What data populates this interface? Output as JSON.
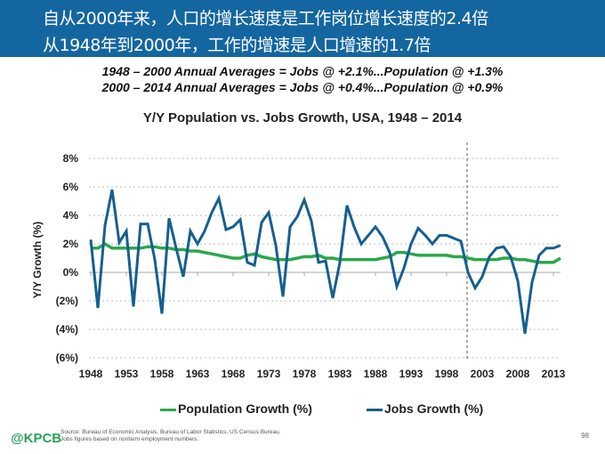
{
  "header": {
    "line1": "自从2000年来，人口的增长速度是工作岗位增长速度的2.4倍",
    "line2": "从1948年到2000年，工作的增速是人口增速的1.7倍"
  },
  "subtitle": {
    "line1": "1948 – 2000 Annual Averages = Jobs @ +2.1%...Population @ +1.3%",
    "line2": "2000 – 2014 Annual Averages = Jobs @ +0.4%...Population @ +0.9%"
  },
  "footer": {
    "logo": "@KPCB",
    "source1": "Source: Bureau of Economic Analysis, Bureau of Labor Statistics, US Census Bureau.",
    "source2": "Jobs figures based on nonfarm employment numbers.",
    "page": "98"
  },
  "chart_data": {
    "type": "line",
    "title": "Y/Y Population vs. Jobs Growth, USA, 1948 – 2014",
    "xlabel": "",
    "ylabel": "Y/Y Growth (%)",
    "ylim": [
      -6,
      8
    ],
    "yticks": [
      "8%",
      "6%",
      "4%",
      "2%",
      "0%",
      "(2%)",
      "(4%)",
      "(6%)"
    ],
    "ytick_values": [
      8,
      6,
      4,
      2,
      0,
      -2,
      -4,
      -6
    ],
    "xticks": [
      "1948",
      "1953",
      "1958",
      "1963",
      "1968",
      "1973",
      "1978",
      "1983",
      "1988",
      "1993",
      "1998",
      "2003",
      "2008",
      "2013"
    ],
    "grid": "horizontal dotted",
    "legend": "bottom",
    "vertical_marker_year": 2001,
    "x": [
      1948,
      1949,
      1950,
      1951,
      1952,
      1953,
      1954,
      1955,
      1956,
      1957,
      1958,
      1959,
      1960,
      1961,
      1962,
      1963,
      1964,
      1965,
      1966,
      1967,
      1968,
      1969,
      1970,
      1971,
      1972,
      1973,
      1974,
      1975,
      1976,
      1977,
      1978,
      1979,
      1980,
      1981,
      1982,
      1983,
      1984,
      1985,
      1986,
      1987,
      1988,
      1989,
      1990,
      1991,
      1992,
      1993,
      1994,
      1995,
      1996,
      1997,
      1998,
      1999,
      2000,
      2001,
      2002,
      2003,
      2004,
      2005,
      2006,
      2007,
      2008,
      2009,
      2010,
      2011,
      2012,
      2013,
      2014
    ],
    "series": [
      {
        "name": "Population Growth (%)",
        "color": "#2aa84a",
        "values": [
          1.7,
          1.7,
          2.0,
          1.7,
          1.7,
          1.7,
          1.7,
          1.7,
          1.8,
          1.8,
          1.7,
          1.7,
          1.6,
          1.6,
          1.5,
          1.5,
          1.4,
          1.3,
          1.2,
          1.1,
          1.0,
          1.0,
          1.2,
          1.3,
          1.1,
          1.0,
          0.9,
          0.9,
          0.9,
          1.0,
          1.1,
          1.1,
          1.2,
          1.0,
          1.0,
          0.9,
          0.9,
          0.9,
          0.9,
          0.9,
          0.9,
          1.0,
          1.1,
          1.4,
          1.4,
          1.3,
          1.2,
          1.2,
          1.2,
          1.2,
          1.2,
          1.1,
          1.1,
          1.0,
          0.9,
          0.9,
          0.9,
          0.9,
          1.0,
          1.0,
          0.9,
          0.9,
          0.8,
          0.7,
          0.7,
          0.7,
          1.0
        ]
      },
      {
        "name": "Jobs Growth (%)",
        "color": "#15608f",
        "values": [
          2.3,
          -2.5,
          3.3,
          5.8,
          2.1,
          2.9,
          -2.4,
          3.4,
          3.4,
          0.9,
          -2.9,
          3.8,
          1.7,
          -0.3,
          2.9,
          2.0,
          2.9,
          4.2,
          5.2,
          3.0,
          3.2,
          3.7,
          0.7,
          0.5,
          3.5,
          4.2,
          1.9,
          -1.7,
          3.2,
          3.9,
          5.1,
          3.6,
          0.7,
          0.8,
          -1.8,
          0.7,
          4.7,
          3.2,
          2.0,
          2.6,
          3.2,
          2.5,
          1.4,
          -1.0,
          0.3,
          2.0,
          3.1,
          2.6,
          2.0,
          2.6,
          2.6,
          2.4,
          2.2,
          0.0,
          -1.1,
          -0.3,
          1.1,
          1.7,
          1.8,
          1.1,
          -0.6,
          -4.3,
          -0.7,
          1.2,
          1.7,
          1.7,
          1.9
        ]
      }
    ]
  }
}
